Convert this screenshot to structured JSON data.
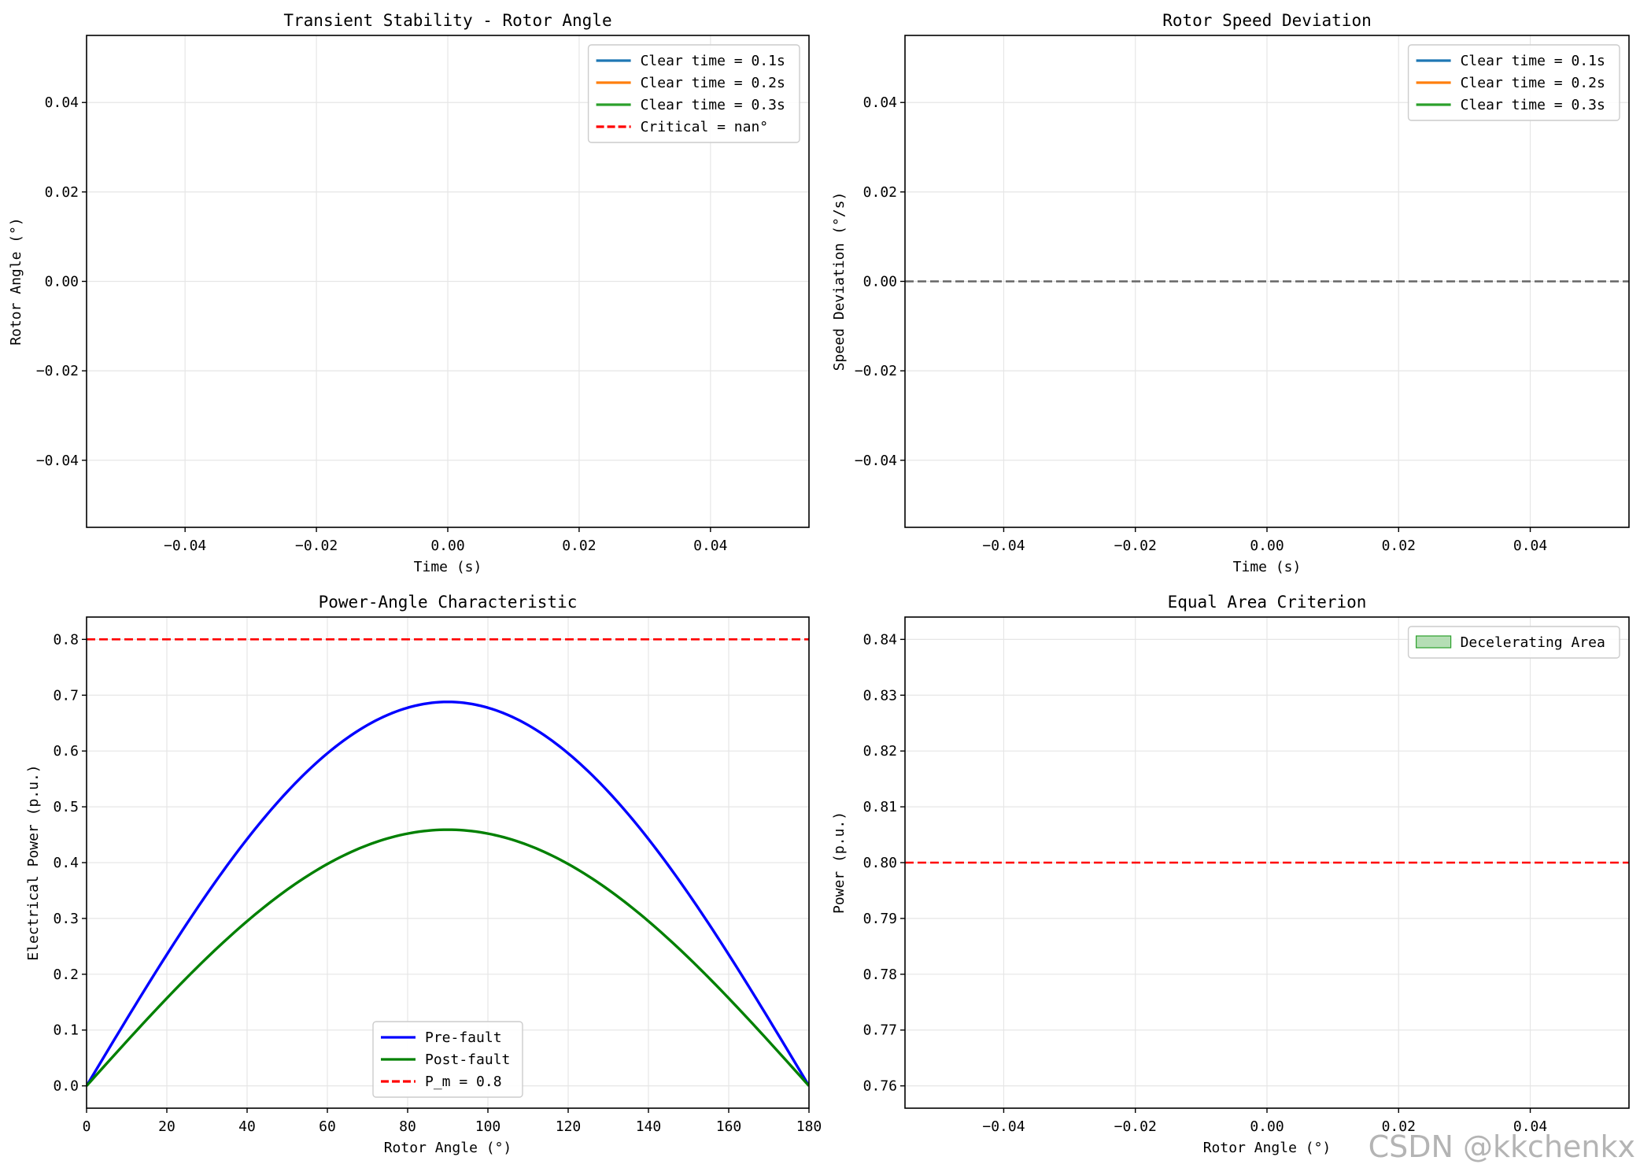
{
  "watermark": "CSDN @kkchenkx",
  "chart_data": [
    {
      "id": "rotor-angle",
      "type": "line",
      "title": "Transient Stability - Rotor Angle",
      "xlabel": "Time (s)",
      "ylabel": "Rotor Angle (°)",
      "xlim": [
        -0.055,
        0.055
      ],
      "ylim": [
        -0.055,
        0.055
      ],
      "xticks": [
        -0.04,
        -0.02,
        0.0,
        0.02,
        0.04
      ],
      "yticks": [
        -0.04,
        -0.02,
        0.0,
        0.02,
        0.04
      ],
      "tick_decimals": 2,
      "grid": true,
      "legend_position": "upper right",
      "series": [
        {
          "name": "Clear time = 0.1s",
          "color": "#1f77b4",
          "style": "solid",
          "x": [],
          "y": []
        },
        {
          "name": "Clear time = 0.2s",
          "color": "#ff7f0e",
          "style": "solid",
          "x": [],
          "y": []
        },
        {
          "name": "Clear time = 0.3s",
          "color": "#2ca02c",
          "style": "solid",
          "x": [],
          "y": []
        },
        {
          "name": "Critical = nan°",
          "color": "#ff0000",
          "style": "dashed",
          "x": [],
          "y": []
        }
      ]
    },
    {
      "id": "speed-deviation",
      "type": "line",
      "title": "Rotor Speed Deviation",
      "xlabel": "Time (s)",
      "ylabel": "Speed Deviation (°/s)",
      "xlim": [
        -0.055,
        0.055
      ],
      "ylim": [
        -0.055,
        0.055
      ],
      "xticks": [
        -0.04,
        -0.02,
        0.0,
        0.02,
        0.04
      ],
      "yticks": [
        -0.04,
        -0.02,
        0.0,
        0.02,
        0.04
      ],
      "tick_decimals": 2,
      "grid": true,
      "legend_position": "upper right",
      "hlines": [
        {
          "y": 0.0,
          "color": "#666666",
          "style": "dashed"
        }
      ],
      "series": [
        {
          "name": "Clear time = 0.1s",
          "color": "#1f77b4",
          "style": "solid",
          "x": [],
          "y": []
        },
        {
          "name": "Clear time = 0.2s",
          "color": "#ff7f0e",
          "style": "solid",
          "x": [],
          "y": []
        },
        {
          "name": "Clear time = 0.3s",
          "color": "#2ca02c",
          "style": "solid",
          "x": [],
          "y": []
        }
      ]
    },
    {
      "id": "power-angle",
      "type": "line",
      "title": "Power-Angle Characteristic",
      "xlabel": "Rotor Angle (°)",
      "ylabel": "Electrical Power (p.u.)",
      "xlim": [
        0,
        180
      ],
      "ylim": [
        -0.04,
        0.84
      ],
      "xticks": [
        0,
        20,
        40,
        60,
        80,
        100,
        120,
        140,
        160,
        180
      ],
      "yticks": [
        0.0,
        0.1,
        0.2,
        0.3,
        0.4,
        0.5,
        0.6,
        0.7,
        0.8
      ],
      "xtick_decimals": 0,
      "ytick_decimals": 1,
      "grid": true,
      "legend_position": "lower center",
      "series": [
        {
          "name": "Pre-fault",
          "color": "#0000ff",
          "style": "solid",
          "sine_amplitude": 0.688
        },
        {
          "name": "Post-fault",
          "color": "#008000",
          "style": "solid",
          "sine_amplitude": 0.459
        },
        {
          "name": "P_m = 0.8",
          "color": "#ff0000",
          "style": "dashed",
          "constant": 0.8
        }
      ]
    },
    {
      "id": "equal-area",
      "type": "area",
      "title": "Equal Area Criterion",
      "xlabel": "Rotor Angle (°)",
      "ylabel": "Power (p.u.)",
      "xlim": [
        -0.055,
        0.055
      ],
      "ylim": [
        0.756,
        0.844
      ],
      "xticks": [
        -0.04,
        -0.02,
        0.0,
        0.02,
        0.04
      ],
      "yticks": [
        0.76,
        0.77,
        0.78,
        0.79,
        0.8,
        0.81,
        0.82,
        0.83,
        0.84
      ],
      "xtick_decimals": 2,
      "ytick_decimals": 2,
      "grid": true,
      "legend_position": "upper right",
      "hlines": [
        {
          "y": 0.8,
          "color": "#ff0000",
          "style": "dashed"
        }
      ],
      "series": [
        {
          "name": "Decelerating Area",
          "color": "#2ca02c",
          "style": "fill",
          "x": [],
          "y": []
        }
      ]
    }
  ]
}
